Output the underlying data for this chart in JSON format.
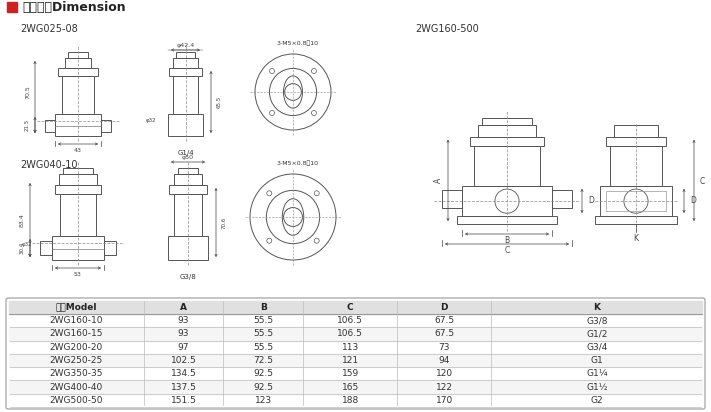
{
  "title_chinese": "外型尺寸Dimension",
  "title_color": "#222222",
  "red_square_color": "#cc2222",
  "bg_color": "#ffffff",
  "section1_label": "2WG025-08",
  "section2_label": "2WG040-10",
  "section3_label": "2WG160-500",
  "table_header": [
    "型号Model",
    "A",
    "B",
    "C",
    "D",
    "K"
  ],
  "table_rows": [
    [
      "2WG160-10",
      "93",
      "55.5",
      "106.5",
      "67.5",
      "G3/8"
    ],
    [
      "2WG160-15",
      "93",
      "55.5",
      "106.5",
      "67.5",
      "G1/2"
    ],
    [
      "2WG200-20",
      "97",
      "55.5",
      "113",
      "73",
      "G3/4"
    ],
    [
      "2WG250-25",
      "102.5",
      "72.5",
      "121",
      "94",
      "G1"
    ],
    [
      "2WG350-35",
      "134.5",
      "92.5",
      "159",
      "120",
      "G1¼"
    ],
    [
      "2WG400-40",
      "137.5",
      "92.5",
      "165",
      "122",
      "G1½"
    ],
    [
      "2WG500-50",
      "151.5",
      "123",
      "188",
      "170",
      "G2"
    ]
  ],
  "table_header_bg": "#e0e0e0",
  "table_border_color": "#999999",
  "table_row_bg_alt": "#f5f5f5",
  "line_color": "#555555",
  "dash_color": "#888888",
  "dim_color": "#444444",
  "label_color": "#333333"
}
